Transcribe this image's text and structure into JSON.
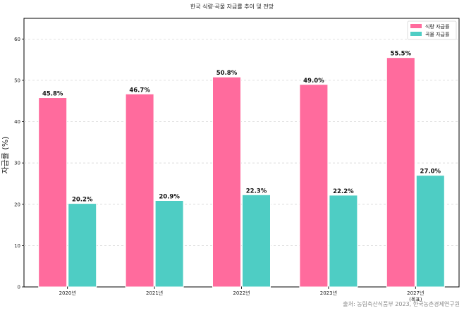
{
  "chart_data": {
    "type": "bar",
    "title": "한국 식량·곡물 자급률 추이 및 전망",
    "xlabel": "",
    "ylabel": "자급률 (%)",
    "ylim": [
      0,
      65
    ],
    "yticks": [
      0,
      10,
      20,
      30,
      40,
      50,
      60
    ],
    "grid": true,
    "legend_position": "top-right",
    "categories": [
      {
        "line1": "2020년",
        "line2": ""
      },
      {
        "line1": "2021년",
        "line2": ""
      },
      {
        "line1": "2022년",
        "line2": ""
      },
      {
        "line1": "2023년",
        "line2": ""
      },
      {
        "line1": "2027년",
        "line2": "(목표)"
      }
    ],
    "series": [
      {
        "name": "식량 자급률",
        "color": "#ff6b9d",
        "values": [
          45.8,
          46.7,
          50.8,
          49.0,
          55.5
        ],
        "labels": [
          "45.8%",
          "46.7%",
          "50.8%",
          "49.0%",
          "55.5%"
        ]
      },
      {
        "name": "곡물 자급률",
        "color": "#4ecdc4",
        "values": [
          20.2,
          20.9,
          22.3,
          22.2,
          27.0
        ],
        "labels": [
          "20.2%",
          "20.9%",
          "22.3%",
          "22.2%",
          "27.0%"
        ]
      }
    ],
    "source": "출처: 농림축산식품부 2023, 한국농촌경제연구원"
  }
}
